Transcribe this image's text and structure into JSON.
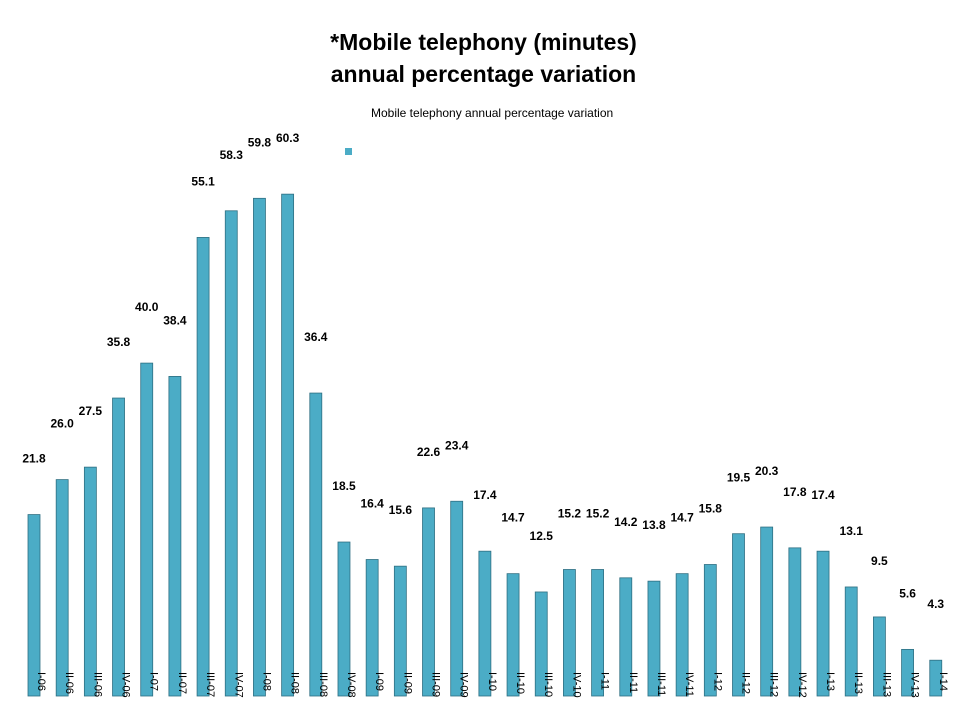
{
  "chart_data": {
    "type": "bar",
    "title": "*Mobile telephony (minutes) annual percentage variation",
    "title_lines": [
      "*Mobile telephony (minutes)",
      "annual percentage variation"
    ],
    "legend": [
      "Mobile telephony annual percentage variation"
    ],
    "series": [
      {
        "name": "Mobile telephony annual percentage variation",
        "color": "#4bacc6"
      }
    ],
    "categories": [
      "I-06",
      "II-06",
      "III-06",
      "IV-06",
      "I-07",
      "II-07",
      "III-07",
      "IV-07",
      "I-08",
      "II-08",
      "III-08",
      "IV-08",
      "I-09",
      "II-09",
      "III-09",
      "IV-09",
      "I-10",
      "II-10",
      "III-10",
      "IV-10",
      "I-11",
      "II-11",
      "III-11",
      "IV-11",
      "I-12",
      "II-12",
      "III-12",
      "IV-12",
      "I-13",
      "II-13",
      "III-13",
      "IV-13",
      "I-14"
    ],
    "values": [
      21.8,
      26.0,
      27.5,
      35.8,
      40.0,
      38.4,
      55.1,
      58.3,
      59.8,
      60.3,
      36.4,
      18.5,
      16.4,
      15.6,
      22.6,
      23.4,
      17.4,
      14.7,
      12.5,
      15.2,
      15.2,
      14.2,
      13.8,
      14.7,
      15.8,
      19.5,
      20.3,
      17.8,
      17.4,
      13.1,
      9.5,
      5.6,
      4.3
    ],
    "value_labels": [
      "21.8",
      "26.0",
      "27.5",
      "35.8",
      "40.0",
      "38.4",
      "55.1",
      "58.3",
      "59.8",
      "60.3",
      "36.4",
      "18.5",
      "16.4",
      "15.6",
      "22.6",
      "23.4",
      "17.4",
      "14.7",
      "12.5",
      "15.2",
      "15.2",
      "14.2",
      "13.8",
      "14.7",
      "15.8",
      "19.5",
      "20.3",
      "17.8",
      "17.4",
      "13.1",
      "9.5",
      "5.6",
      "4.3"
    ],
    "xlabel": "",
    "ylabel": "",
    "ylim": [
      0,
      62
    ],
    "grid": false
  }
}
